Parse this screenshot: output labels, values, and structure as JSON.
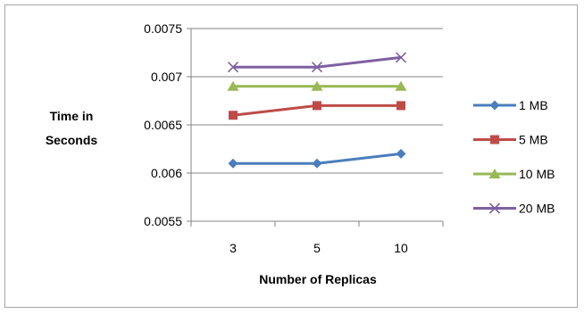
{
  "chart_data": {
    "type": "line",
    "title": "",
    "xlabel": "Number of Replicas",
    "ylabel_lines": [
      "Time in",
      "Seconds"
    ],
    "categories": [
      "3",
      "5",
      "10"
    ],
    "ylim": [
      0.0055,
      0.0075
    ],
    "yticks": [
      "0.0055",
      "0.006",
      "0.0065",
      "0.007",
      "0.0075"
    ],
    "ytick_values": [
      0.0055,
      0.006,
      0.0065,
      0.007,
      0.0075
    ],
    "grid": "horizontal",
    "legend_position": "right",
    "series": [
      {
        "name": "1 MB",
        "values": [
          0.0061,
          0.0061,
          0.0062
        ],
        "color": "#4a7ebb",
        "marker": "diamond"
      },
      {
        "name": "5 MB",
        "values": [
          0.0066,
          0.0067,
          0.0067
        ],
        "color": "#be4b48",
        "marker": "square"
      },
      {
        "name": "10 MB",
        "values": [
          0.0069,
          0.0069,
          0.0069
        ],
        "color": "#98b954",
        "marker": "triangle"
      },
      {
        "name": "20 MB",
        "values": [
          0.0071,
          0.0071,
          0.0072
        ],
        "color": "#7d60a0",
        "marker": "x"
      }
    ]
  }
}
